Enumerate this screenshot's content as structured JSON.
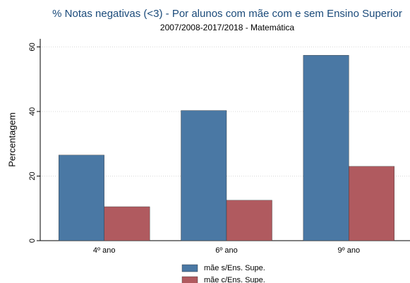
{
  "chart_data": {
    "type": "bar",
    "title": "% Notas negativas (<3) - Por alunos com mãe com e sem Ensino Superior",
    "subtitle": "2007/2008-2017/2018 -  Matemática",
    "y_label": "Percentagem",
    "categories": [
      "4º ano",
      "6º ano",
      "9º ano"
    ],
    "series": [
      {
        "name": "mãe s/Ens. Supe.",
        "color": "#4a78a4",
        "values": [
          26.5,
          40.3,
          57.4
        ]
      },
      {
        "name": "mãe c/Ens. Supe.",
        "color": "#b05a5f",
        "values": [
          10.5,
          12.5,
          23.0
        ]
      }
    ],
    "ylim": [
      0,
      62.5
    ],
    "yticks": [
      0,
      20,
      40,
      60
    ],
    "grid": true,
    "legend": "bottom"
  }
}
